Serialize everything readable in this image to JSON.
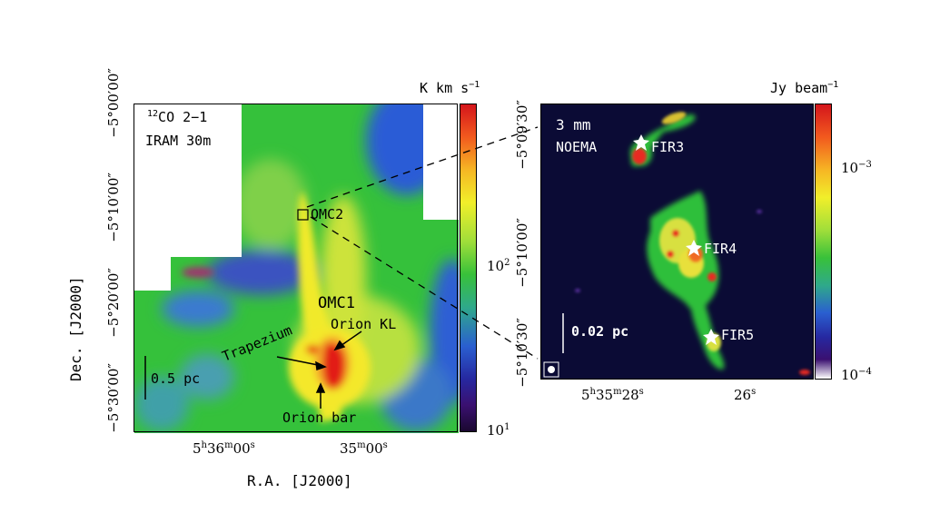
{
  "left_panel": {
    "tracer_sup": "12",
    "tracer": "CO 2−1",
    "telescope": "IRAM 30m",
    "scalebar": "0.5 pc",
    "labels": {
      "omc2": "OMC2",
      "omc1": "OMC1",
      "orion_kl": "Orion KL",
      "trapezium": "Trapezium",
      "orion_bar": "Orion bar"
    },
    "colorbar": {
      "unit_main": "K km s",
      "unit_exp": "−1",
      "ticks": [
        {
          "base": "10",
          "exp": "2"
        },
        {
          "base": "10",
          "exp": "1"
        }
      ]
    },
    "dec_ticks": [
      "−5°00′00″",
      "−5°10′00″",
      "−5°20′00″",
      "−5°30′00″"
    ],
    "ra_ticks": [
      {
        "h": "5",
        "h_unit": "h",
        "m": "36",
        "m_unit": "m",
        "s": "00",
        "s_unit": "s"
      },
      {
        "m": "35",
        "m_unit": "m",
        "s": "00",
        "s_unit": "s"
      }
    ],
    "ylabel": "Dec. [J2000]",
    "xlabel": "R.A. [J2000]"
  },
  "right_panel": {
    "band": "3 mm",
    "telescope": "NOEMA",
    "scalebar": "0.02 pc",
    "sources": [
      "FIR3",
      "FIR4",
      "FIR5"
    ],
    "colorbar": {
      "unit_main": "Jy beam",
      "unit_exp": "−1",
      "ticks": [
        {
          "base": "10",
          "exp": "−3"
        },
        {
          "base": "10",
          "exp": "−4"
        }
      ]
    },
    "dec_ticks": [
      "−5°09′30″",
      "−5°10′00″",
      "−5°10′30″"
    ],
    "ra_ticks": [
      {
        "h": "5",
        "h_unit": "h",
        "m": "35",
        "m_unit": "m",
        "s": "28",
        "s_unit": "s"
      },
      {
        "s": "26",
        "s_unit": "s"
      }
    ]
  },
  "colors": {
    "background_right": "#0b0b35",
    "map_green": "#2fc43a",
    "map_blue": "#2a4fcf",
    "star": "#ffffff"
  }
}
